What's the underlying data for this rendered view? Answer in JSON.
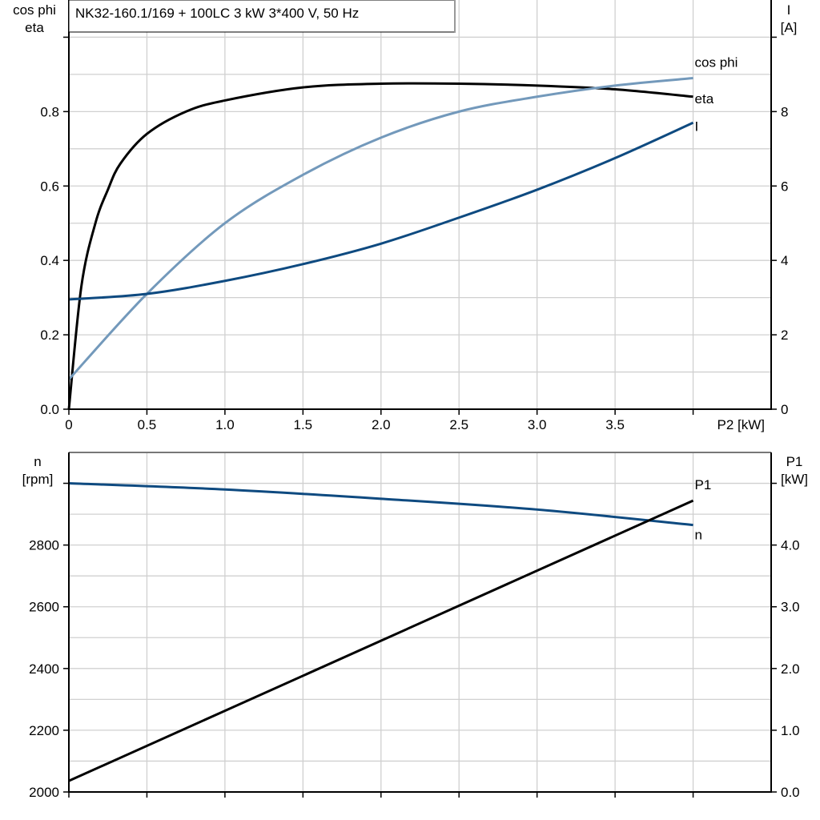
{
  "title": "NK32-160.1/169 + 100LC   3 kW   3*400 V, 50 Hz",
  "colors": {
    "eta": "#000000",
    "cos_phi": "#7399bb",
    "I": "#0e4a80",
    "n": "#0e4a80",
    "P1": "#000000",
    "grid": "#d0d0d0"
  },
  "chart_data": [
    {
      "type": "line",
      "xlabel": "P2 [kW]",
      "xlim": [
        0,
        4.5
      ],
      "xticks": [
        0,
        0.5,
        1.0,
        1.5,
        2.0,
        2.5,
        3.0,
        3.5
      ],
      "xtick_labels": [
        "0",
        "0.5",
        "1.0",
        "1.5",
        "2.0",
        "2.5",
        "3.0",
        "3.5"
      ],
      "ylabel_left": [
        "cos phi",
        "eta"
      ],
      "ylim_left": [
        0,
        1.1
      ],
      "yticks_left": [
        "0.0",
        "0.2",
        "0.4",
        "0.6",
        "0.8"
      ],
      "ylabel_right": [
        "I",
        "[A]"
      ],
      "ylim_right": [
        0,
        11
      ],
      "yticks_right": [
        "0",
        "2",
        "4",
        "6",
        "8"
      ],
      "grid": true,
      "series": [
        {
          "name": "eta",
          "axis": "left",
          "x": [
            0,
            0.08,
            0.17,
            0.25,
            0.33,
            0.5,
            0.75,
            1.0,
            1.5,
            2.0,
            2.5,
            3.0,
            3.5,
            4.0
          ],
          "y": [
            0,
            0.33,
            0.5,
            0.59,
            0.66,
            0.74,
            0.8,
            0.83,
            0.865,
            0.875,
            0.875,
            0.87,
            0.86,
            0.84
          ]
        },
        {
          "name": "cos phi",
          "axis": "left",
          "x": [
            0,
            0.5,
            1.0,
            1.5,
            2.0,
            2.5,
            3.0,
            3.5,
            4.0
          ],
          "y": [
            0.08,
            0.31,
            0.5,
            0.63,
            0.73,
            0.8,
            0.84,
            0.87,
            0.89
          ]
        },
        {
          "name": "I",
          "axis": "right",
          "x": [
            0,
            0.5,
            1.0,
            1.5,
            2.0,
            2.5,
            3.0,
            3.5,
            4.0
          ],
          "y": [
            2.95,
            3.1,
            3.45,
            3.9,
            4.45,
            5.15,
            5.9,
            6.75,
            7.7
          ]
        }
      ]
    },
    {
      "type": "line",
      "xlim": [
        0,
        4.5
      ],
      "ylabel_left": [
        "n",
        "[rpm]"
      ],
      "ylim_left": [
        2000,
        3100
      ],
      "yticks_left": [
        "2000",
        "2200",
        "2400",
        "2600",
        "2800"
      ],
      "ylabel_right": [
        "P1",
        "[kW]"
      ],
      "ylim_right": [
        0,
        5.5
      ],
      "yticks_right": [
        "0.0",
        "1.0",
        "2.0",
        "3.0",
        "4.0"
      ],
      "grid": true,
      "series": [
        {
          "name": "n",
          "axis": "left",
          "x": [
            0,
            1,
            2,
            3,
            4
          ],
          "y": [
            3000,
            2980,
            2950,
            2915,
            2865
          ]
        },
        {
          "name": "P1",
          "axis": "right",
          "x": [
            0,
            4.0
          ],
          "y": [
            0.18,
            4.72
          ]
        }
      ]
    }
  ]
}
